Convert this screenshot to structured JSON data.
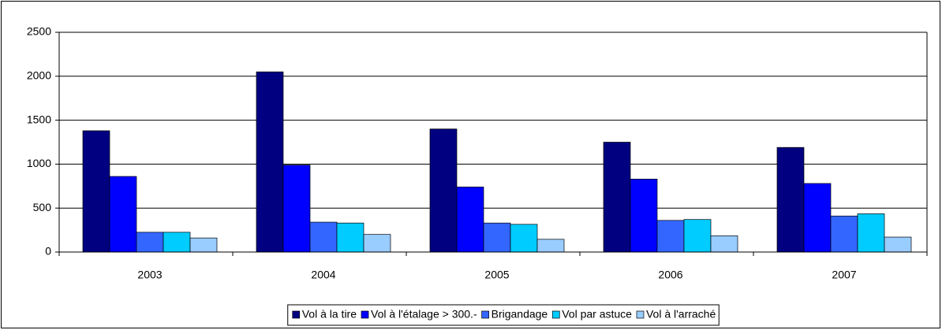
{
  "chart_data": {
    "type": "bar",
    "categories": [
      "2003",
      "2004",
      "2005",
      "2006",
      "2007"
    ],
    "series": [
      {
        "name": "Vol à la tire",
        "color": "#000080",
        "values": [
          1380,
          2050,
          1400,
          1250,
          1190
        ]
      },
      {
        "name": "Vol à l'étalage > 300.-",
        "color": "#0000ff",
        "values": [
          860,
          990,
          740,
          830,
          780
        ]
      },
      {
        "name": "Brigandage",
        "color": "#3366ff",
        "values": [
          225,
          340,
          330,
          360,
          410
        ]
      },
      {
        "name": "Vol par astuce",
        "color": "#00ccff",
        "values": [
          225,
          330,
          315,
          370,
          435
        ]
      },
      {
        "name": "Vol à l'arraché",
        "color": "#99ccff",
        "values": [
          160,
          200,
          145,
          185,
          170
        ]
      }
    ],
    "ylim": [
      0,
      2500
    ],
    "yticks": [
      0,
      500,
      1000,
      1500,
      2000,
      2500
    ],
    "grid": true,
    "legend": "bottom"
  }
}
